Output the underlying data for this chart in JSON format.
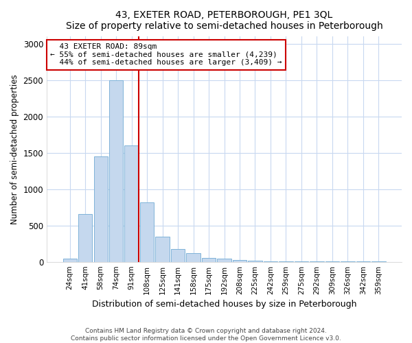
{
  "title": "43, EXETER ROAD, PETERBOROUGH, PE1 3QL",
  "subtitle": "Size of property relative to semi-detached houses in Peterborough",
  "xlabel": "Distribution of semi-detached houses by size in Peterborough",
  "ylabel": "Number of semi-detached properties",
  "categories": [
    "24sqm",
    "41sqm",
    "58sqm",
    "74sqm",
    "91sqm",
    "108sqm",
    "125sqm",
    "141sqm",
    "158sqm",
    "175sqm",
    "192sqm",
    "208sqm",
    "225sqm",
    "242sqm",
    "259sqm",
    "275sqm",
    "292sqm",
    "309sqm",
    "326sqm",
    "342sqm",
    "359sqm"
  ],
  "values": [
    40,
    655,
    1450,
    2500,
    1600,
    820,
    350,
    175,
    115,
    55,
    40,
    30,
    20,
    5,
    5,
    5,
    2,
    2,
    2,
    2,
    2
  ],
  "bar_color": "#c5d8ee",
  "bar_edge_color": "#7fb3d9",
  "annotation_box_color": "#ffffff",
  "annotation_box_edge": "#cc0000",
  "vline_color": "#cc0000",
  "property_label": "43 EXETER ROAD: 89sqm",
  "pct_smaller": 55,
  "n_smaller": 4239,
  "pct_larger": 44,
  "n_larger": 3409,
  "vline_category_index": 4,
  "ylim": [
    0,
    3100
  ],
  "yticks": [
    0,
    500,
    1000,
    1500,
    2000,
    2500,
    3000
  ],
  "footer_line1": "Contains HM Land Registry data © Crown copyright and database right 2024.",
  "footer_line2": "Contains public sector information licensed under the Open Government Licence v3.0.",
  "bg_color": "#ffffff",
  "plot_bg_color": "#ffffff",
  "grid_color": "#c8d8f0"
}
